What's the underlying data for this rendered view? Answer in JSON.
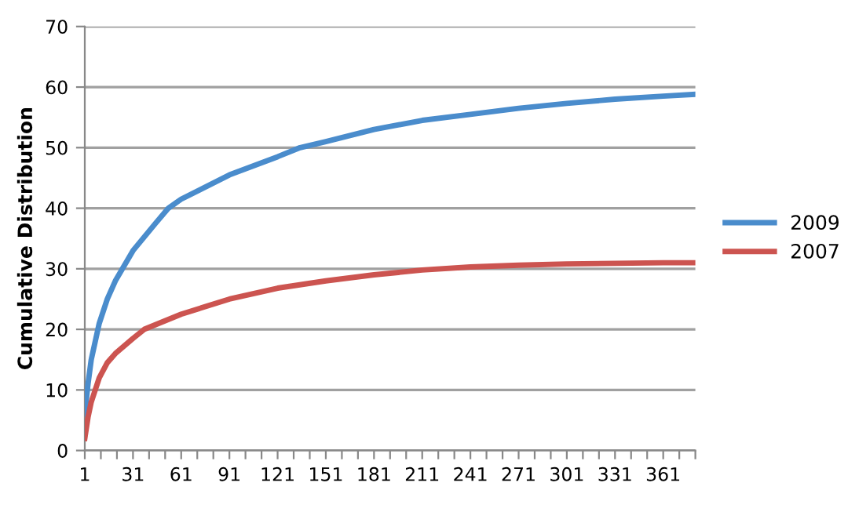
{
  "chart_data": {
    "type": "line",
    "ylabel": "Cumulative Distribution",
    "xlim": [
      1,
      381
    ],
    "ylim": [
      0,
      70
    ],
    "yticks": [
      0,
      10,
      20,
      30,
      40,
      50,
      60,
      70
    ],
    "xticks": [
      1,
      {
        "value": 11,
        "label": null
      },
      {
        "value": 21,
        "label": null
      },
      31,
      {
        "value": 41,
        "label": null
      },
      {
        "value": 51,
        "label": null
      },
      61,
      {
        "value": 71,
        "label": null
      },
      {
        "value": 81,
        "label": null
      },
      91,
      {
        "value": 101,
        "label": null
      },
      {
        "value": 111,
        "label": null
      },
      121,
      {
        "value": 131,
        "label": null
      },
      {
        "value": 141,
        "label": null
      },
      151,
      {
        "value": 161,
        "label": null
      },
      {
        "value": 171,
        "label": null
      },
      181,
      {
        "value": 191,
        "label": null
      },
      {
        "value": 201,
        "label": null
      },
      211,
      {
        "value": 221,
        "label": null
      },
      {
        "value": 231,
        "label": null
      },
      241,
      {
        "value": 251,
        "label": null
      },
      {
        "value": 261,
        "label": null
      },
      271,
      {
        "value": 281,
        "label": null
      },
      {
        "value": 291,
        "label": null
      },
      301,
      {
        "value": 311,
        "label": null
      },
      {
        "value": 321,
        "label": null
      },
      331,
      {
        "value": 341,
        "label": null
      },
      {
        "value": 351,
        "label": null
      },
      361,
      {
        "value": 371,
        "label": null
      },
      {
        "value": 381,
        "label": null
      }
    ],
    "grid": "y",
    "legend": "right",
    "marker": "none",
    "line_style": "solid",
    "series": [
      {
        "name": "2009",
        "color": "#4a8ccc",
        "x": [
          1,
          3,
          5,
          10,
          15,
          20,
          31,
          45,
          53,
          61,
          91,
          121,
          135,
          151,
          181,
          211,
          241,
          271,
          301,
          331,
          361,
          381
        ],
        "values": [
          6,
          11,
          15,
          21,
          25,
          28,
          33,
          37.5,
          40,
          41.5,
          45.5,
          48.5,
          50,
          51,
          53,
          54.5,
          55.5,
          56.5,
          57.3,
          58,
          58.5,
          58.8
        ]
      },
      {
        "name": "2007",
        "color": "#cc5450",
        "x": [
          1,
          3,
          5,
          10,
          15,
          20,
          31,
          38,
          61,
          91,
          121,
          151,
          181,
          211,
          241,
          271,
          301,
          331,
          361,
          381
        ],
        "values": [
          2,
          5.5,
          8,
          12,
          14.5,
          16,
          18.5,
          20,
          22.5,
          25,
          26.8,
          28,
          29,
          29.8,
          30.3,
          30.6,
          30.8,
          30.9,
          31,
          31
        ]
      }
    ]
  }
}
